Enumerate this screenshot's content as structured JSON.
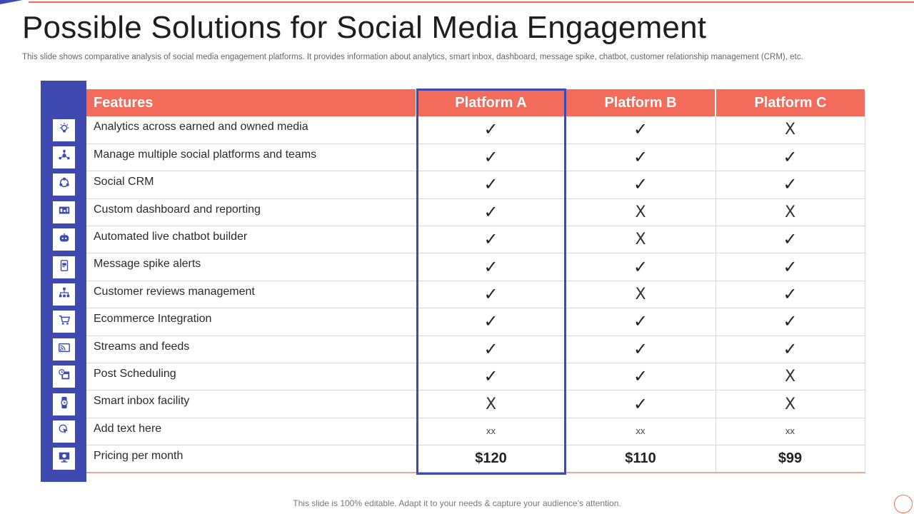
{
  "slide": {
    "title": "Possible Solutions for Social Media Engagement",
    "subtitle": "This slide shows comparative analysis of social media engagement platforms. It provides information about analytics, smart inbox, dashboard, message spike, chatbot, customer relationship management (CRM), etc.",
    "footer": "This slide is 100% editable. Adapt it to your needs & capture your audience’s attention."
  },
  "colors": {
    "accent": "#f26b5b",
    "brand": "#3e4ab0"
  },
  "table": {
    "headers": [
      "Features",
      "Platform A",
      "Platform B",
      "Platform C"
    ],
    "rows": [
      {
        "feature": "Analytics across earned and owned media",
        "icon": "analytics-bulb-icon",
        "values": [
          "check",
          "check",
          "cross"
        ]
      },
      {
        "feature": "Manage multiple social platforms and teams",
        "icon": "team-network-icon",
        "values": [
          "check",
          "check",
          "check"
        ]
      },
      {
        "feature": "Social CRM",
        "icon": "crm-cycle-icon",
        "values": [
          "check",
          "check",
          "check"
        ]
      },
      {
        "feature": "Custom dashboard and reporting",
        "icon": "dashboard-icon",
        "values": [
          "check",
          "cross",
          "cross"
        ]
      },
      {
        "feature": "Automated live chatbot builder",
        "icon": "chatbot-icon",
        "values": [
          "check",
          "cross",
          "check"
        ]
      },
      {
        "feature": "Message spike alerts",
        "icon": "mobile-message-icon",
        "values": [
          "check",
          "check",
          "check"
        ]
      },
      {
        "feature": "Customer reviews management",
        "icon": "hierarchy-icon",
        "values": [
          "check",
          "cross",
          "check"
        ]
      },
      {
        "feature": "Ecommerce Integration",
        "icon": "shopping-cart-icon",
        "values": [
          "check",
          "check",
          "check"
        ]
      },
      {
        "feature": "Streams and feeds",
        "icon": "cast-stream-icon",
        "values": [
          "check",
          "check",
          "check"
        ]
      },
      {
        "feature": "Post Scheduling",
        "icon": "schedule-calendar-icon",
        "values": [
          "check",
          "check",
          "cross"
        ]
      },
      {
        "feature": "Smart inbox facility",
        "icon": "smartwatch-icon",
        "values": [
          "cross",
          "check",
          "cross"
        ]
      },
      {
        "feature": "Add text here",
        "icon": "click-pointer-icon",
        "values": [
          "xx",
          "xx",
          "xx"
        ]
      },
      {
        "feature": "Pricing per month",
        "icon": "monitor-price-icon",
        "values": [
          "$120",
          "$110",
          "$99"
        ]
      }
    ]
  },
  "symbols": {
    "check": "✓",
    "cross": "X"
  }
}
